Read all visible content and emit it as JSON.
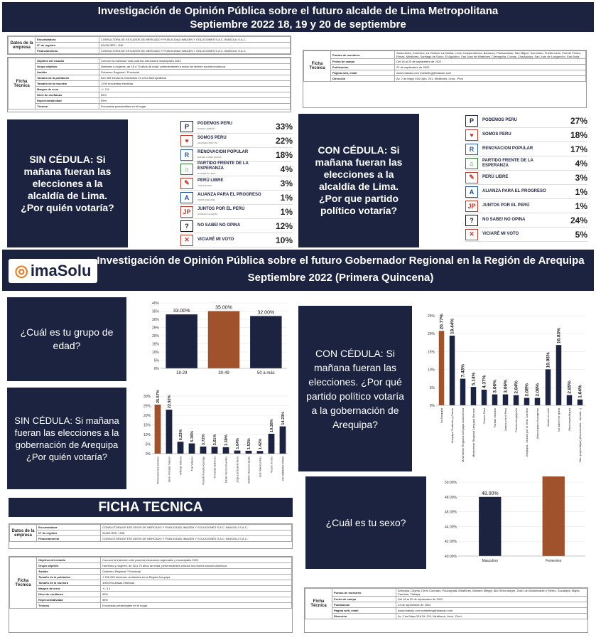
{
  "banner_lima": {
    "line1": "Investigación de Opinión Pública sobre el futuro alcalde de Lima Metropolitana",
    "line2": "Septiembre 2022 18, 19 y 20 de septiembre"
  },
  "lima_empresa": {
    "label": "Datos de la empresa",
    "rows": [
      [
        "Encuestadora",
        "CONSULTORA DE ESTUDIOS DE MERCADO Y PUBLICIDAD IMAGEN Y SOLUCIONES S.A.C. IMASOLU S.A.C."
      ],
      [
        "N° de registro",
        "00416-REE / JNE"
      ],
      [
        "Financiamiento",
        "CONSULTORA DE ESTUDIOS DE MERCADO Y PUBLICIDAD IMAGEN Y SOLUCIONES S.A.C. IMASOLU S.A.C."
      ]
    ]
  },
  "lima_tecnica": {
    "label": "Ficha Técnica",
    "rows": [
      [
        "Objetivo del estudio",
        "Conocer la intención voto para las elecciones municipales 2022"
      ],
      [
        "Grupo objetivo",
        "Hombres y mujeres, de 18 a 70 años de edad, pertenecientes a todos los niveles socioeconómicos"
      ],
      [
        "Ámbito",
        "Gobierno Regional / Provincial"
      ],
      [
        "Tamaño de la población",
        "824 456 electores residentes en Lima Metropolitana"
      ],
      [
        "Tamaño de la muestra",
        "1200 encuestas efectivas"
      ],
      [
        "Margen de error",
        "+/- 2.8"
      ],
      [
        "Nivel de confianza",
        "95%"
      ],
      [
        "Representatividad",
        "95%"
      ],
      [
        "Técnica",
        "Encuestas presenciales en el hogar"
      ]
    ]
  },
  "lima_tecnica2": {
    "label": "Ficha Técnica",
    "rows": [
      [
        "Puntos de muestreo",
        "Santa Anita, Chorrillos, La Victoria, La Molina, Lince, Independencia, Barranco, Pachacamac, San Miguel, San isidro, Pueblo Libre, Puente Piedra, Rímac, Miraflores, Santiago de Surco, El Agustino, San Juan de Miraflores, Cieneguilla, Comas, Chaclacayo, San Juan de Lurigancho, San Borja."
      ],
      [
        "Fecha de campo",
        "Del 18 al 20 de septiembre de 2022"
      ],
      [
        "Publicación",
        "22 de septiembre de 2022"
      ],
      [
        "Página web, email",
        "www.imasolu.com          marketing@imasolu.com"
      ],
      [
        "Dirección",
        "Av. 2 de Mayo 516 Dpto. 201, Miraflores, Lima - Perú"
      ]
    ]
  },
  "q_sin_cedula_lima": "SIN CÉDULA: Si mañana fueran las elecciones a la alcaldía de Lima. ¿Por quién votaría?",
  "q_con_cedula_lima": "CON CÉDULA: Si mañana fueran las elecciones a la alcaldía de Lima. ¿Por que partido político votaría?",
  "lima_sin": [
    {
      "logo": "P",
      "name": "PODEMOS PERU",
      "sub": "DANIEL URRESTI",
      "value": "33%",
      "color": "#1c2340"
    },
    {
      "logo": "♥",
      "name": "SOMOS PERU",
      "sub": "GEORGE FORSYTH",
      "value": "22%",
      "color": "#c0392b"
    },
    {
      "logo": "R",
      "name": "RENOVACION POPULAR",
      "sub": "RAFAEL LOPEZ ALIAGA",
      "value": "18%",
      "color": "#2e5ea8"
    },
    {
      "logo": "⌂",
      "name": "PARTIDO FRENTE DE LA ESPERANZA",
      "sub": "ELIZABETH LEON",
      "value": "4%",
      "color": "#2e7d32"
    },
    {
      "logo": "✎",
      "name": "PERÚ LIBRE",
      "sub": "YURI CASTRO",
      "value": "3%",
      "color": "#c0392b"
    },
    {
      "logo": "A",
      "name": "ALIANZA PARA EL PROGRESO",
      "sub": "OMAR CHEHADE",
      "value": "1%",
      "color": "#1a4fa0"
    },
    {
      "logo": "JP",
      "name": "JUNTOS POR EL PERÚ",
      "sub": "GONZALO ALEGRIA",
      "value": "1%",
      "color": "#c0392b"
    },
    {
      "logo": "?",
      "name": "NO SABE/ NO OPINA",
      "sub": "",
      "value": "12%",
      "color": "#111"
    },
    {
      "logo": "✕",
      "name": "VICIARÉ MI VOTO",
      "sub": "",
      "value": "10%",
      "color": "#c0392b"
    }
  ],
  "lima_con": [
    {
      "logo": "P",
      "name": "PODEMOS PERU",
      "value": "27%",
      "color": "#1c2340"
    },
    {
      "logo": "♥",
      "name": "SOMOS PERU",
      "value": "18%",
      "color": "#c0392b"
    },
    {
      "logo": "R",
      "name": "RENOVACION POPULAR",
      "value": "17%",
      "color": "#2e5ea8"
    },
    {
      "logo": "⌂",
      "name": "PARTIDO FRENTE DE LA ESPERANZA",
      "value": "4%",
      "color": "#2e7d32"
    },
    {
      "logo": "✎",
      "name": "PERÚ LIBRE",
      "value": "3%",
      "color": "#c0392b"
    },
    {
      "logo": "A",
      "name": "ALIANZA PARA EL PROGRESO",
      "value": "1%",
      "color": "#1a4fa0"
    },
    {
      "logo": "JP",
      "name": "JUNTOS POR EL PERÚ",
      "value": "1%",
      "color": "#c0392b"
    },
    {
      "logo": "?",
      "name": "NO SABE/ NO OPINA",
      "value": "24%",
      "color": "#111"
    },
    {
      "logo": "✕",
      "name": "VICIARÉ MI VOTO",
      "value": "5%",
      "color": "#c0392b"
    }
  ],
  "banner_arequipa": {
    "line1": "Investigación de Opinión Pública sobre el futuro  Gobernador Regional en la Región de Arequipa",
    "line2": "Septiembre 2022     (Primera Quincena)"
  },
  "logo_text": "imaSolu",
  "q_edad": "¿Cuál es tu grupo de edad?",
  "q_sin_cedula_areq": "SIN CÉDULA: Si mañana fueran las elecciones a la gobernación de Arequipa ¿Por quién votaría?",
  "q_con_cedula_areq": "CON CÉDULA: Si mañana fueran las elecciones. ¿Por qué partido político votaría a la gobernación de Arequipa?",
  "q_sexo": "¿Cuál es tu sexo?",
  "ficha_title": "FICHA TECNICA",
  "areq_empresa": {
    "label": "Datos de la empresa",
    "rows": [
      [
        "Encuestadora",
        "CONSULTORA DE ESTUDIOS DE MERCADO Y PUBLICIDAD IMAGEN Y SOLUCIONES S.A.C. IMASOLU S.A.C."
      ],
      [
        "N° de registro",
        "00460-REE / JNE"
      ],
      [
        "Financiamiento",
        "CONSULTORA DE ESTUDIOS DE MERCADO Y PUBLICIDAD IMAGEN Y SOLUCIONES S.A.C. IMASOLU S.A.C."
      ]
    ]
  },
  "areq_tecnica": {
    "label": "Ficha Técnica",
    "rows": [
      [
        "Objetivo del estudio",
        "Conocer la intención voto para las elecciones regionales y municipales 2022"
      ],
      [
        "Grupo objetivo",
        "Hombres y mujeres, de 18 a 70 años de edad, pertenecientes a todos los niveles socioeconómicos"
      ],
      [
        "Ámbito",
        "Gobierno Regional / Provincial"
      ],
      [
        "Tamaño de la población",
        "1 155 269 electores residentes en la Región Arequipa"
      ],
      [
        "Tamaño de la muestra",
        "1000 encuestas efectivas"
      ],
      [
        "Margen de error",
        "+/- 3.1"
      ],
      [
        "Nivel de confianza",
        "95%"
      ],
      [
        "Representatividad",
        "98%"
      ],
      [
        "Técnica",
        "Encuestas presenciales en el hogar"
      ]
    ]
  },
  "areq_tecnica2": {
    "label": "Ficha Técnica",
    "rows": [
      [
        "Puntos de muestreo",
        "Arequipa, Cayma, Cerro Colorado, Paucarpata, Miraflores, Mariano Melgar, Alto Selva Alegre, José Luis Bustamante y Rivero, Socabaya, Majes, Camaná, Tiabaya"
      ],
      [
        "Fecha de campo",
        "Del 18 al 20 de septiembre de 2022"
      ],
      [
        "Publicación",
        "23 de septiembre de 2022"
      ],
      [
        "Página web, email",
        "www.imasolu.com          marketing@imasolu.com"
      ],
      [
        "Dirección",
        "Av. 2 de Mayo 516 Dt. 201, Miraflores, Lima - Perú"
      ]
    ]
  },
  "chart_data": [
    {
      "type": "bar",
      "id": "edad",
      "categories": [
        "18-29",
        "30-49",
        "50 a más"
      ],
      "values": [
        33.0,
        35.0,
        32.0
      ],
      "value_labels": [
        "33.00%",
        "35.00%",
        "32.00%"
      ],
      "ylim": [
        0,
        40
      ],
      "yticks": [
        "0%",
        "5%",
        "10%",
        "15%",
        "20%",
        "25%",
        "30%",
        "35%",
        "40%"
      ],
      "highlight": 1,
      "colors": {
        "bar": "#1c2340",
        "highlight": "#a0522d"
      }
    },
    {
      "type": "bar",
      "id": "sin_cedula_arequipa",
      "categories": [
        "Rohel Sánchez Sánchez",
        "Javier Ismodes Salazar",
        "Wilfredo Oliveira",
        "Tula Vidanos",
        "Ricardo Paredes Quiroga",
        "Fernando Gutiérrez",
        "Héctor Herrera Fuentes",
        "Jorge Luis Duarte Neira",
        "Vladimir Huamaní Ojeda",
        "José Valencia Ruiz",
        "Viciaré mi voto",
        "NO SABE/NO OPINA"
      ],
      "values": [
        25.57,
        22.92,
        6.23,
        5.36,
        3.72,
        3.61,
        3.39,
        1.64,
        1.53,
        1.42,
        10.38,
        14.23
      ],
      "value_labels": [
        "25.57%",
        "22.92%",
        "6.23%",
        "5.36%",
        "3.72%",
        "3.61%",
        "3.39%",
        "1.64%",
        "1.53%",
        "1.42%",
        "10.38%",
        "14.23%"
      ],
      "ylim": [
        0,
        30
      ],
      "yticks": [
        "0%",
        "5%",
        "10%",
        "15%",
        "20%",
        "25%",
        "30%"
      ],
      "highlight": 0,
      "colors": {
        "bar": "#1c2340",
        "highlight": "#a0522d"
      }
    },
    {
      "type": "bar",
      "id": "con_cedula_arequipa",
      "categories": [
        "Yo Arequipa",
        "Arequipa Tradición y Futuro",
        "Movimiento Regional Arequipa Avancemos",
        "Movimiento Regional Arequipa Renace",
        "Somos Perú",
        "Partido Morado",
        "Juntos por el Perú",
        "Fuerza Arequipeña",
        "Arequipa - Unidos por el Gran Cambio",
        "Alianza para el progreso",
        "Viciaré mi voto",
        "No sabe/ No opina",
        "Otro (especifique)",
        "Otro (especifique) (Escuchador - Arenita...)"
      ],
      "values": [
        20.77,
        19.44,
        7.43,
        5.14,
        4.37,
        3.06,
        3.06,
        2.84,
        2.08,
        2.08,
        10.05,
        16.83,
        2.85,
        1.64
      ],
      "value_labels": [
        "20.77%",
        "19.44%",
        "7.43%",
        "5.14%",
        "4.37%",
        "3.06%",
        "3.06%",
        "2.84%",
        "2.08%",
        "2.08%",
        "10.05%",
        "16.83%",
        "2.85%",
        "1.64%"
      ],
      "ylim": [
        0,
        25
      ],
      "yticks": [
        "0%",
        "5%",
        "10%",
        "15%",
        "20%",
        "25%"
      ],
      "highlight": 0,
      "colors": {
        "bar": "#1c2340",
        "highlight": "#a0522d"
      }
    },
    {
      "type": "bar",
      "id": "sexo",
      "categories": [
        "Masculino",
        "Femenino"
      ],
      "values": [
        48.0,
        52.0
      ],
      "value_labels": [
        "48.00%",
        "52.00%"
      ],
      "ylim": [
        0,
        50
      ],
      "yticks": [
        "40.00%",
        "42.00%",
        "44.00%",
        "46.00%",
        "48.00%",
        "50.00%"
      ],
      "highlight": 1,
      "colors": {
        "bar": "#1c2340",
        "highlight": "#a0522d"
      }
    }
  ]
}
